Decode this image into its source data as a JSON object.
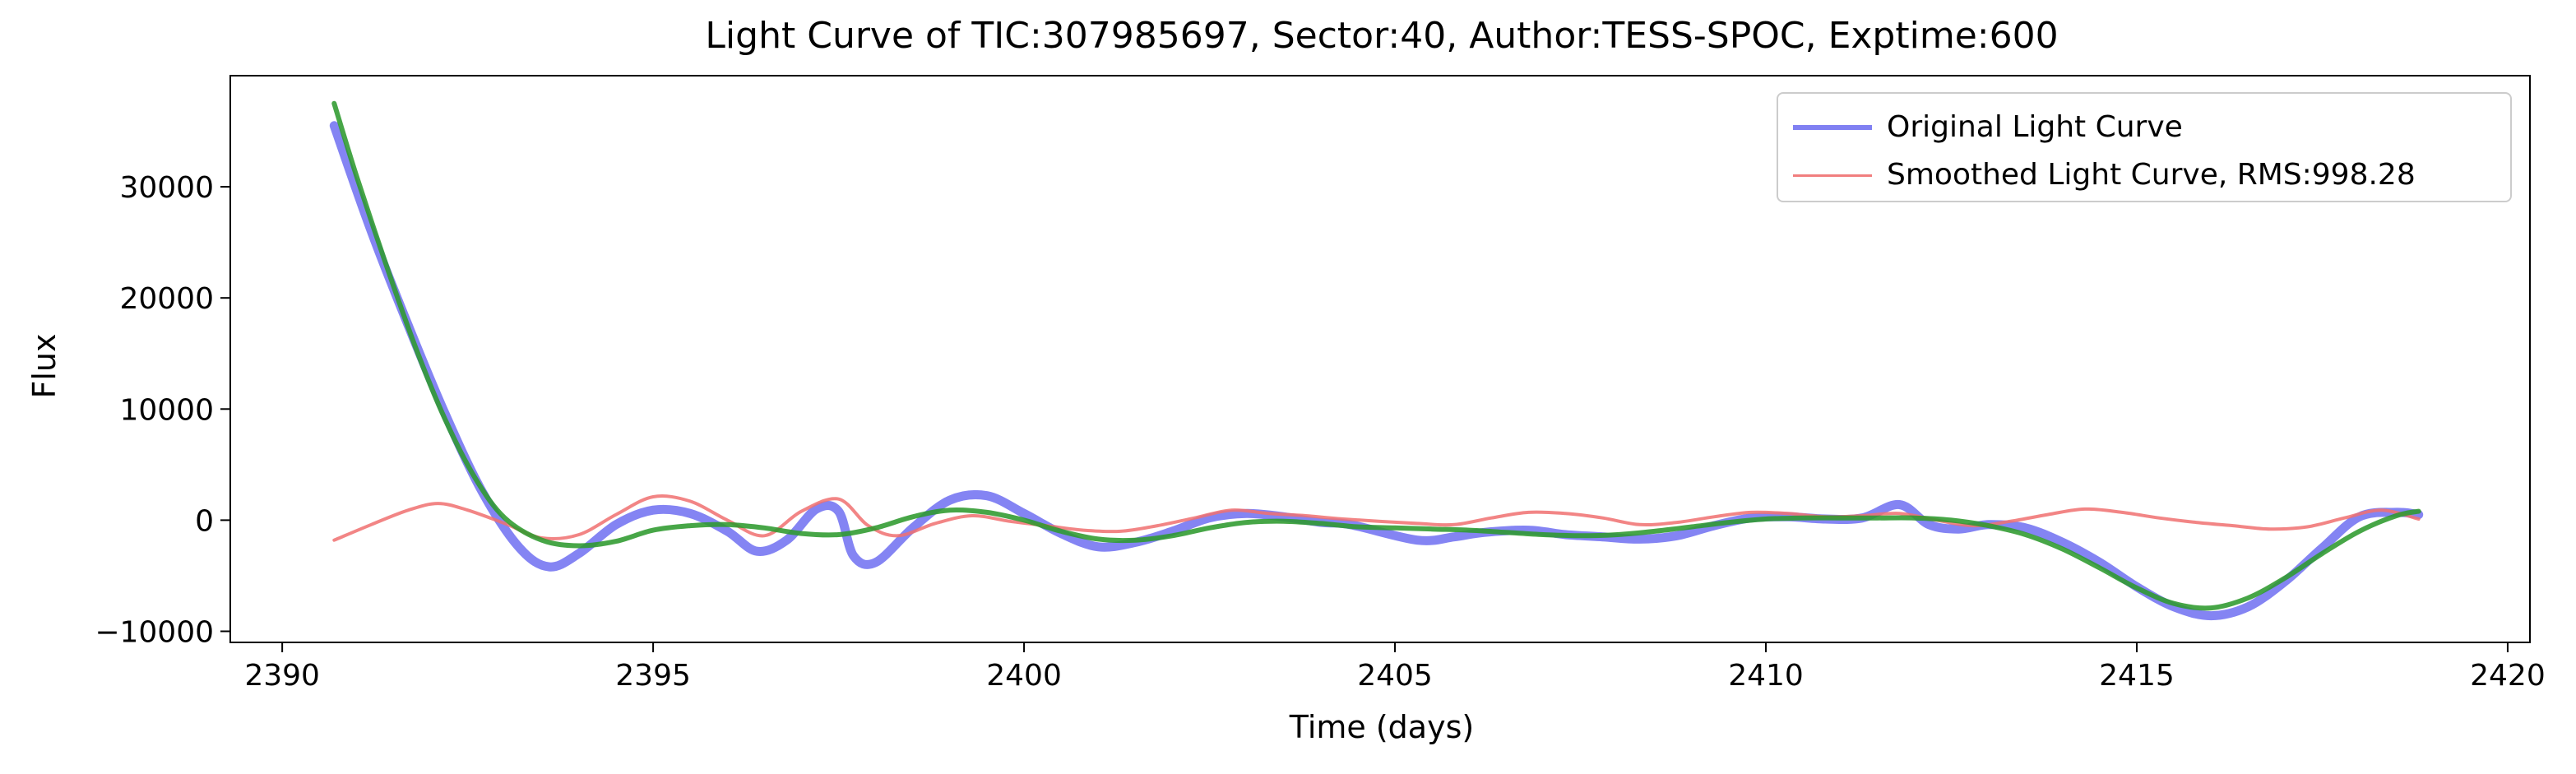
{
  "chart_data": {
    "type": "line",
    "title": "Light Curve of TIC:307985697, Sector:40, Author:TESS-SPOC, Exptime:600",
    "xlabel": "Time (days)",
    "ylabel": "Flux",
    "xlim": [
      2389.3,
      2420.3
    ],
    "ylim": [
      -11000,
      40000
    ],
    "xticks": [
      2390,
      2395,
      2400,
      2405,
      2410,
      2415,
      2420
    ],
    "yticks": [
      -10000,
      0,
      10000,
      20000,
      30000
    ],
    "ytick_labels": [
      "−10000",
      "0",
      "10000",
      "20000",
      "30000"
    ],
    "legend_position": "top-right",
    "series": [
      {
        "name": "Original Light Curve",
        "color": "#5555ee",
        "x": [
          2390.7,
          2391.2,
          2391.7,
          2392.2,
          2392.7,
          2393.2,
          2393.6,
          2394.0,
          2394.5,
          2395.0,
          2395.5,
          2396.0,
          2396.4,
          2396.8,
          2397.2,
          2397.5,
          2397.7,
          2398.0,
          2398.5,
          2399.0,
          2399.5,
          2400.0,
          2400.5,
          2401.0,
          2401.5,
          2402.0,
          2402.5,
          2403.0,
          2403.5,
          2404.0,
          2404.4,
          2405.3,
          2405.8,
          2406.2,
          2406.8,
          2407.3,
          2407.8,
          2408.3,
          2408.8,
          2409.3,
          2409.8,
          2410.3,
          2410.8,
          2411.3,
          2411.8,
          2412.2,
          2412.6,
          2413.0,
          2413.5,
          2414.0,
          2414.5,
          2415.0,
          2415.5,
          2416.0,
          2416.5,
          2417.0,
          2417.5,
          2418.0,
          2418.5,
          2418.8
        ],
        "y": [
          35500,
          26000,
          17500,
          9500,
          2500,
          -2500,
          -4200,
          -3000,
          -400,
          900,
          600,
          -1000,
          -2800,
          -1800,
          1000,
          800,
          -3200,
          -3800,
          -700,
          1800,
          2200,
          600,
          -1200,
          -2400,
          -2000,
          -1000,
          200,
          600,
          300,
          -200,
          -400,
          -1800,
          -1500,
          -1100,
          -900,
          -1300,
          -1500,
          -1700,
          -1400,
          -500,
          200,
          300,
          100,
          200,
          1400,
          -400,
          -800,
          -400,
          -700,
          -2000,
          -3800,
          -6000,
          -7800,
          -8600,
          -7800,
          -5500,
          -2500,
          300,
          700,
          500
        ]
      },
      {
        "name": "Smoothed Light Curve, RMS:998.28",
        "color": "#f07070",
        "x": [
          2390.7,
          2391.2,
          2391.7,
          2392.1,
          2392.5,
          2393.0,
          2393.5,
          2394.0,
          2394.5,
          2395.0,
          2395.5,
          2396.0,
          2396.5,
          2397.0,
          2397.5,
          2397.9,
          2398.3,
          2398.8,
          2399.3,
          2399.8,
          2400.3,
          2400.8,
          2401.3,
          2401.8,
          2402.3,
          2402.8,
          2403.3,
          2403.8,
          2404.3,
          2405.3,
          2405.8,
          2406.3,
          2406.8,
          2407.3,
          2407.8,
          2408.3,
          2408.8,
          2409.3,
          2409.8,
          2410.3,
          2410.8,
          2411.3,
          2411.8,
          2412.3,
          2412.8,
          2413.3,
          2413.8,
          2414.3,
          2414.8,
          2415.3,
          2415.8,
          2416.3,
          2416.8,
          2417.3,
          2417.8,
          2418.3,
          2418.8
        ],
        "y": [
          -1800,
          -400,
          900,
          1500,
          900,
          -300,
          -1600,
          -1300,
          500,
          2100,
          1700,
          0,
          -1400,
          800,
          1900,
          -500,
          -1400,
          -300,
          400,
          -100,
          -500,
          -900,
          -1000,
          -500,
          200,
          900,
          600,
          400,
          100,
          -300,
          -400,
          200,
          700,
          600,
          200,
          -400,
          -200,
          300,
          700,
          600,
          300,
          400,
          600,
          0,
          -500,
          -100,
          500,
          1000,
          700,
          200,
          -200,
          -500,
          -800,
          -600,
          200,
          900,
          100
        ]
      },
      {
        "name": "",
        "color": "#2e9a2e",
        "x": [
          2390.7,
          2391.0,
          2391.4,
          2391.8,
          2392.2,
          2392.6,
          2393.0,
          2393.5,
          2394.0,
          2394.5,
          2395.0,
          2395.5,
          2396.0,
          2396.5,
          2397.0,
          2397.5,
          2398.0,
          2398.5,
          2399.0,
          2399.5,
          2400.0,
          2400.5,
          2401.0,
          2401.5,
          2402.0,
          2402.5,
          2403.0,
          2403.5,
          2404.0,
          2404.5,
          2405.0,
          2405.5,
          2406.0,
          2406.5,
          2407.0,
          2407.5,
          2408.0,
          2408.5,
          2409.0,
          2409.5,
          2410.0,
          2410.5,
          2411.0,
          2411.5,
          2412.0,
          2412.5,
          2413.0,
          2413.5,
          2414.0,
          2414.5,
          2415.0,
          2415.5,
          2416.0,
          2416.5,
          2417.0,
          2417.5,
          2418.0,
          2418.5,
          2418.8
        ],
        "y": [
          37500,
          31000,
          23000,
          15500,
          9000,
          3800,
          200,
          -1800,
          -2300,
          -1900,
          -900,
          -500,
          -400,
          -700,
          -1200,
          -1300,
          -700,
          300,
          900,
          700,
          0,
          -1000,
          -1700,
          -1800,
          -1400,
          -700,
          -200,
          -100,
          -300,
          -600,
          -700,
          -800,
          -900,
          -1100,
          -1300,
          -1400,
          -1300,
          -1000,
          -600,
          -200,
          100,
          200,
          200,
          200,
          200,
          0,
          -500,
          -1300,
          -2600,
          -4300,
          -6100,
          -7500,
          -7900,
          -7000,
          -5200,
          -3000,
          -1000,
          400,
          800
        ]
      }
    ]
  }
}
